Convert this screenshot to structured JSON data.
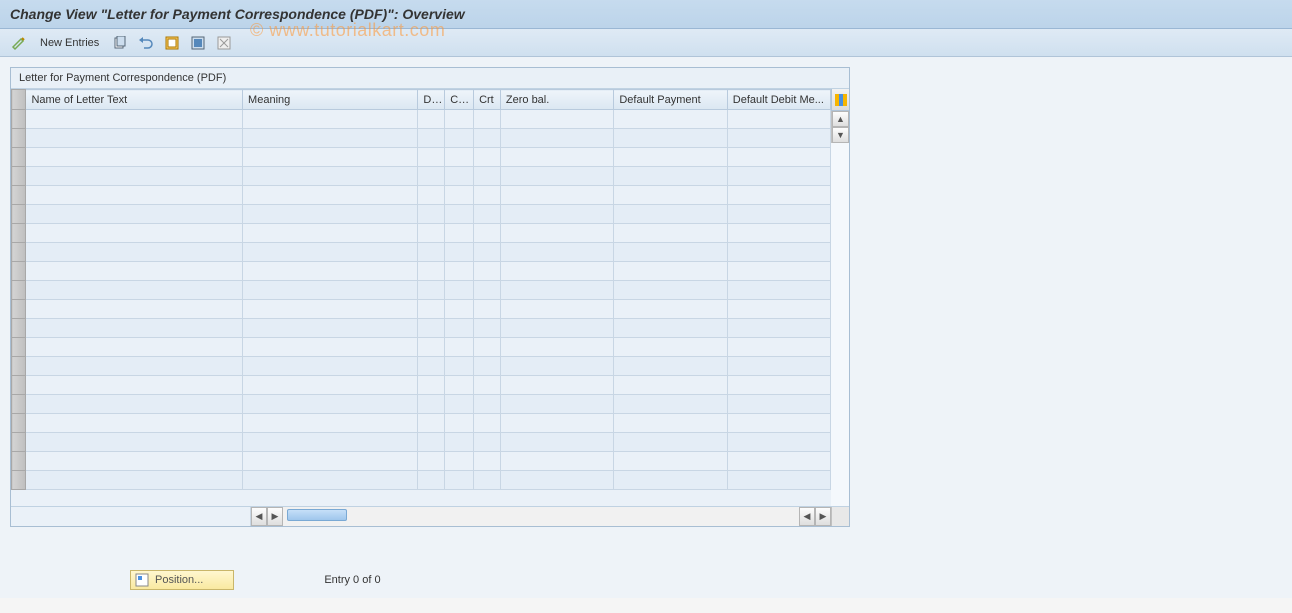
{
  "title": "Change View \"Letter for Payment Correspondence (PDF)\": Overview",
  "watermark": "© www.tutorialkart.com",
  "toolbar": {
    "new_entries": "New Entries"
  },
  "panel": {
    "title": "Letter for Payment Correspondence (PDF)",
    "columns": {
      "name": "Name of Letter Text",
      "meaning": "Meaning",
      "dis": "Dis",
      "cgh": "Cgh",
      "crt": "Crt",
      "zero": "Zero bal.",
      "defpay": "Default Payment",
      "defdeb": "Default Debit Me..."
    },
    "row_count": 20,
    "colors": {
      "header_bg_top": "#eef4fa",
      "header_bg_bottom": "#dbe7f2",
      "row_bg": "#eaf1f8",
      "row_alt_bg": "#e4edf6",
      "border": "#c8d6e4"
    }
  },
  "footer": {
    "position_label": "Position...",
    "entry_text": "Entry 0 of 0"
  }
}
